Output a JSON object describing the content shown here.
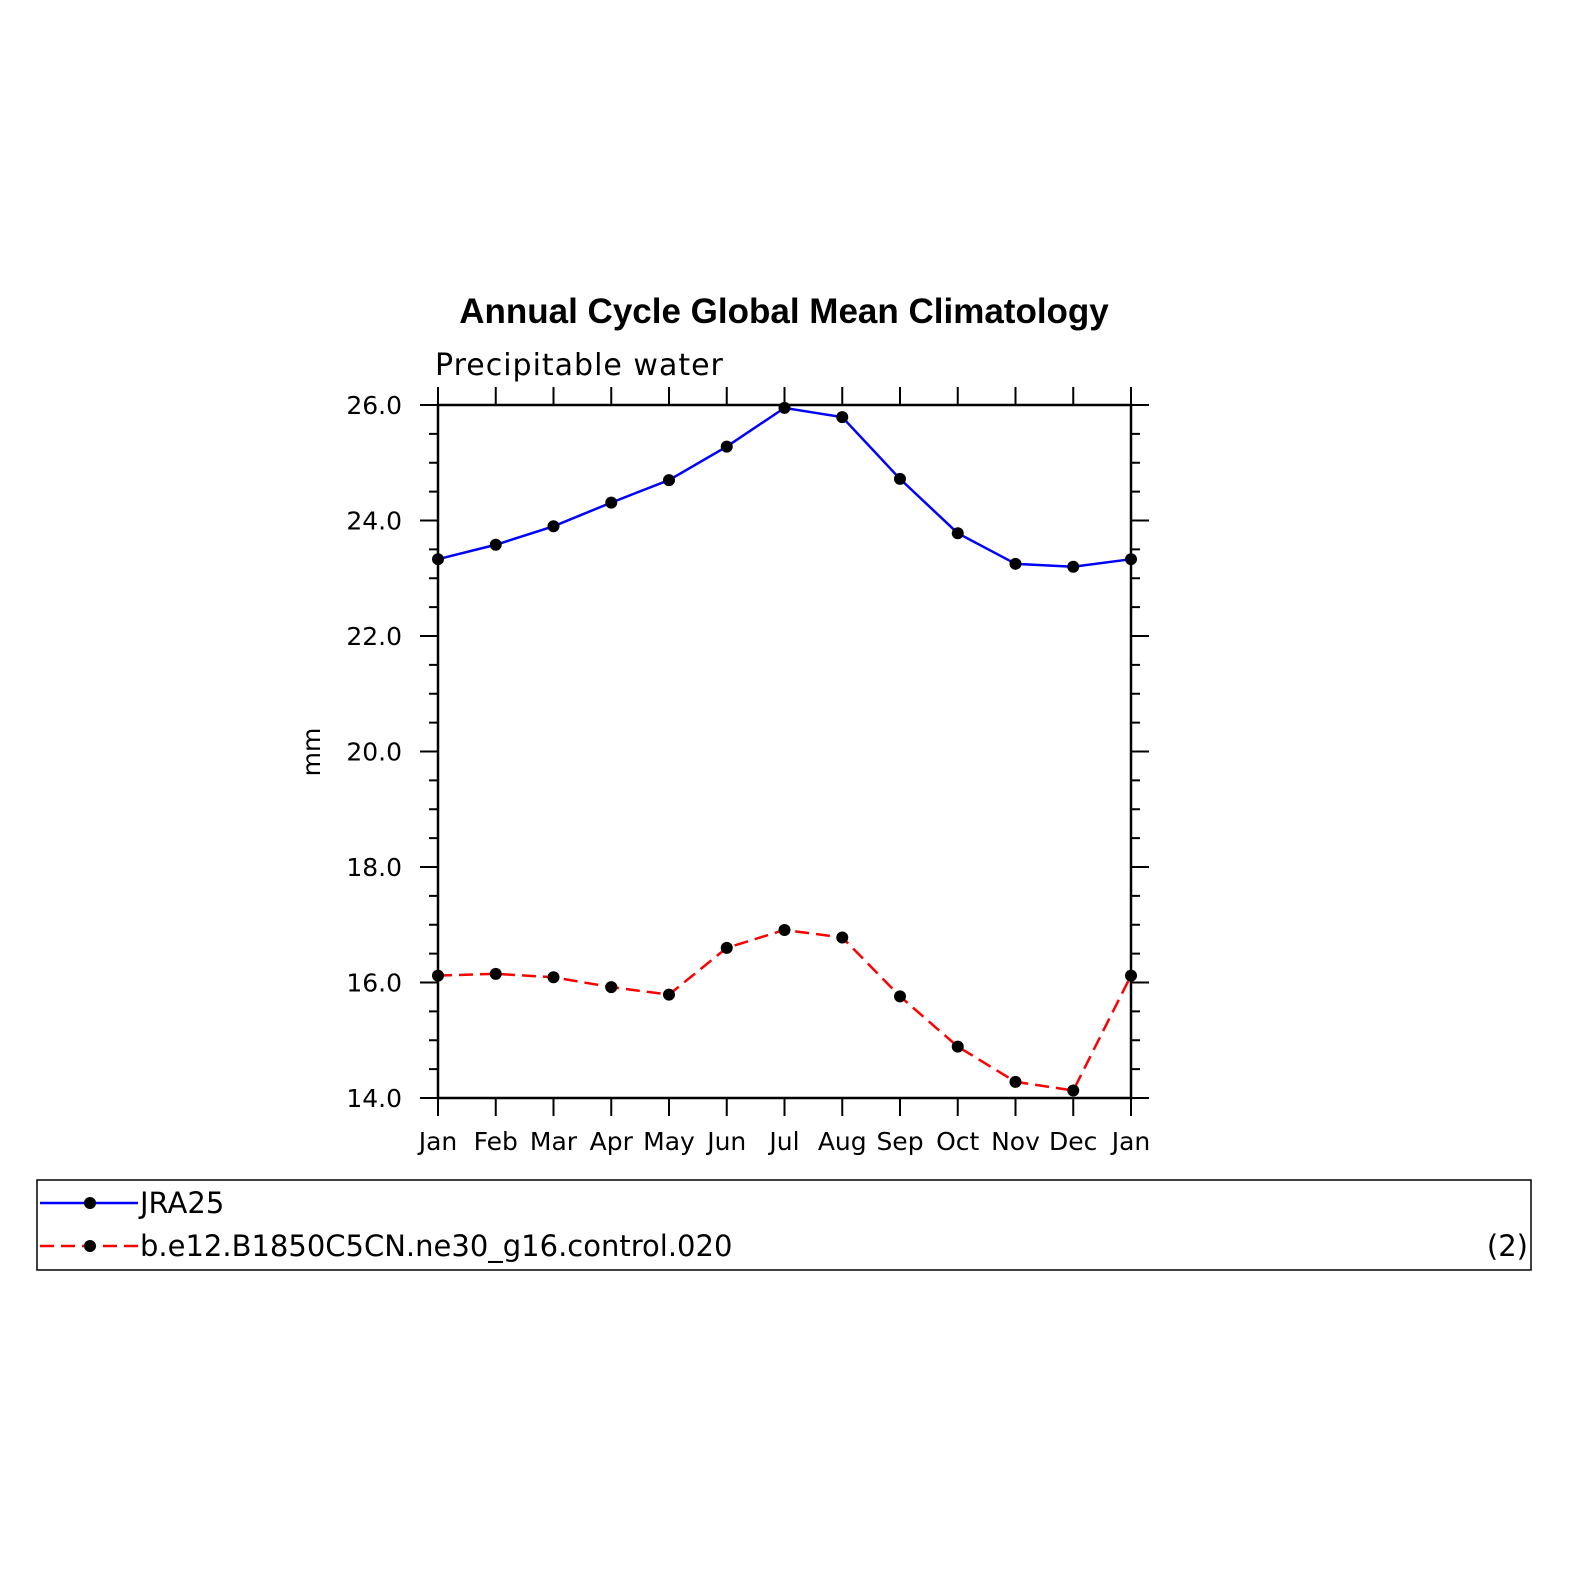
{
  "chart_data": {
    "type": "line",
    "title": "Annual Cycle Global Mean Climatology",
    "subtitle": "Precipitable water",
    "xlabel": "",
    "ylabel": "mm",
    "categories": [
      "Jan",
      "Feb",
      "Mar",
      "Apr",
      "May",
      "Jun",
      "Jul",
      "Aug",
      "Sep",
      "Oct",
      "Nov",
      "Dec",
      "Jan"
    ],
    "ylim": [
      14.0,
      26.0
    ],
    "yticks": [
      "14.0",
      "16.0",
      "18.0",
      "20.0",
      "22.0",
      "24.0",
      "26.0"
    ],
    "series": [
      {
        "name": "JRA25",
        "color": "#0000ff",
        "dash": "solid",
        "values": [
          23.33,
          23.58,
          23.9,
          24.31,
          24.7,
          25.28,
          25.95,
          25.79,
          24.72,
          23.78,
          23.25,
          23.2,
          23.33
        ]
      },
      {
        "name": "b.e12.B1850C5CN.ne30_g16.control.020",
        "color": "#ff0000",
        "dash": "dashed",
        "values": [
          16.12,
          16.15,
          16.09,
          15.92,
          15.79,
          16.6,
          16.91,
          16.78,
          15.76,
          14.89,
          14.28,
          14.13,
          16.12
        ]
      }
    ],
    "legend": {
      "placement": "bottom",
      "note": "(2)"
    }
  }
}
